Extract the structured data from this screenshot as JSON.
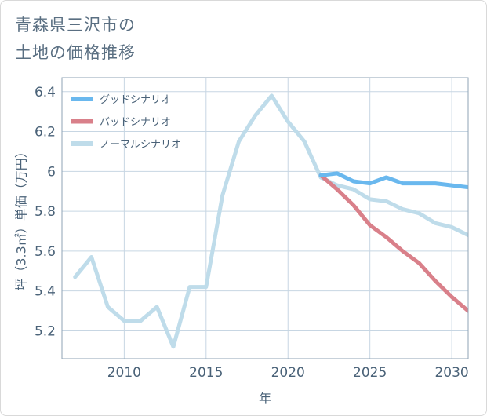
{
  "title_lines": [
    "青森県三沢市の",
    "土地の価格推移"
  ],
  "colors": {
    "good": "#6ab8ee",
    "bad": "#d9808a",
    "normal": "#bfdcea",
    "axis_text": "#4a6278",
    "grid": "#c7d6e3",
    "frame": "#8fa3b5"
  },
  "chart_data": {
    "type": "line",
    "title": "青森県三沢市の土地の価格推移",
    "xlabel": "年",
    "ylabel": "坪（3.3㎡）単価（万円）",
    "xlim": [
      2006.2,
      2031
    ],
    "ylim": [
      5.06,
      6.47
    ],
    "x_ticks": [
      2010,
      2015,
      2020,
      2025,
      2030
    ],
    "y_ticks": [
      5.2,
      5.4,
      5.6,
      5.8,
      6,
      6.2,
      6.4
    ],
    "y_tick_labels": [
      "5.2",
      "5.4",
      "5.6",
      "5.8",
      "6",
      "6.2",
      "6.4"
    ],
    "legend_position": "top-left",
    "series": [
      {
        "name": "グッドシナリオ",
        "key": "good",
        "x": [
          2022,
          2023,
          2024,
          2025,
          2026,
          2027,
          2028,
          2029,
          2030,
          2031
        ],
        "y": [
          5.98,
          5.99,
          5.95,
          5.94,
          5.97,
          5.94,
          5.94,
          5.94,
          5.93,
          5.92
        ]
      },
      {
        "name": "バッドシナリオ",
        "key": "bad",
        "x": [
          2022,
          2023,
          2024,
          2025,
          2026,
          2027,
          2028,
          2029,
          2030,
          2031
        ],
        "y": [
          5.98,
          5.91,
          5.83,
          5.73,
          5.67,
          5.6,
          5.54,
          5.45,
          5.37,
          5.3
        ]
      },
      {
        "name": "ノーマルシナリオ",
        "key": "normal",
        "x": [
          2007,
          2008,
          2009,
          2010,
          2011,
          2012,
          2013,
          2014,
          2015,
          2016,
          2017,
          2018,
          2019,
          2020,
          2021,
          2022,
          2023,
          2024,
          2025,
          2026,
          2027,
          2028,
          2029,
          2030,
          2031
        ],
        "y": [
          5.47,
          5.57,
          5.32,
          5.25,
          5.25,
          5.32,
          5.12,
          5.42,
          5.42,
          5.88,
          6.15,
          6.28,
          6.38,
          6.25,
          6.15,
          5.97,
          5.93,
          5.91,
          5.86,
          5.85,
          5.81,
          5.79,
          5.74,
          5.72,
          5.68
        ]
      }
    ]
  }
}
